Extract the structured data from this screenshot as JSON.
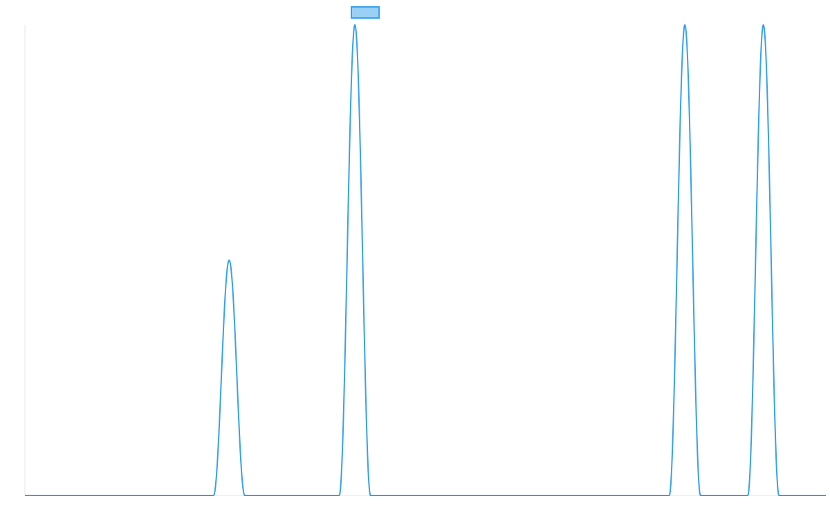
{
  "colors": {
    "background": "#ffffff",
    "line": "#36a2eb",
    "legend_fill": "#9ad0f5",
    "axis": "#e6e6e6"
  },
  "chart_data": {
    "type": "line",
    "title": "",
    "xlabel": "",
    "ylabel": "",
    "grid": false,
    "legend": {
      "placement": "top-center",
      "label": ""
    },
    "xlim": [
      0,
      1000
    ],
    "ylim": [
      0,
      1
    ],
    "series": [
      {
        "peaks": [
          {
            "center": 255,
            "height": 0.5,
            "half_width": 19.5
          },
          {
            "center": 412,
            "height": 1.0,
            "half_width": 19.5
          },
          {
            "center": 824,
            "height": 1.0,
            "half_width": 19.5
          },
          {
            "center": 922,
            "height": 1.0,
            "half_width": 19.5
          }
        ],
        "baseline": 0
      }
    ]
  }
}
